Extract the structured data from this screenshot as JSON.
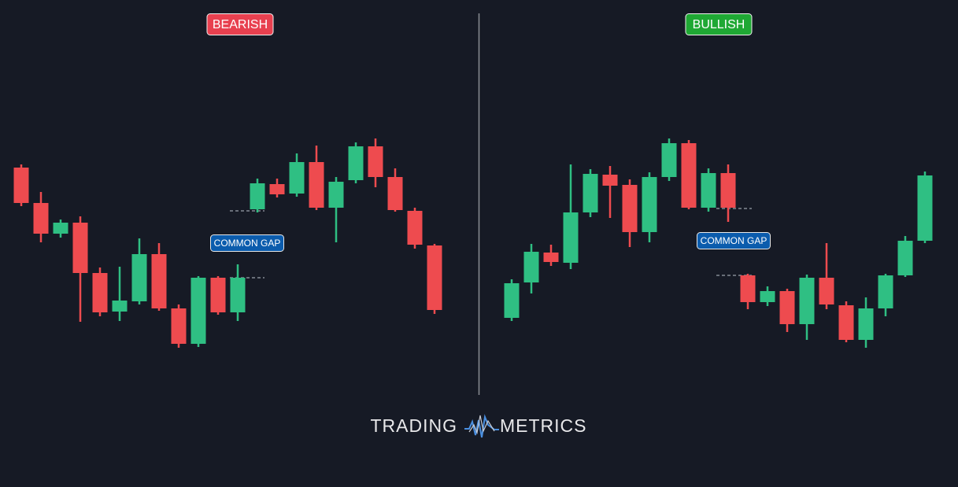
{
  "chart_data": [
    {
      "type": "candlestick",
      "title": "BEARISH",
      "title_color": "#e8404f",
      "annotation": "COMMON GAP",
      "up_color": "#2fbf83",
      "down_color": "#ee4b4f",
      "ylim": [
        0,
        500
      ],
      "gap": [
        232,
        147
      ],
      "open": [
        287,
        242,
        203,
        217,
        153,
        104,
        117,
        177,
        108,
        63,
        147,
        103,
        234,
        266,
        254,
        294,
        236,
        271,
        314,
        275,
        232,
        188
      ],
      "high": [
        291,
        256,
        221,
        225,
        160,
        161,
        197,
        191,
        113,
        149,
        149,
        164,
        273,
        273,
        305,
        315,
        275,
        319,
        324,
        286,
        236,
        190
      ],
      "low": [
        238,
        192,
        198,
        91,
        98,
        92,
        113,
        105,
        58,
        59,
        100,
        92,
        230,
        249,
        250,
        233,
        192,
        267,
        262,
        231,
        184,
        101
      ],
      "close": [
        242,
        203,
        217,
        153,
        103,
        118,
        177,
        108,
        63,
        147,
        103,
        147,
        267,
        253,
        294,
        236,
        269,
        314,
        275,
        233,
        189,
        106
      ]
    },
    {
      "type": "candlestick",
      "title": "BULLISH",
      "title_color": "#1fa834",
      "annotation": "COMMON GAP",
      "up_color": "#2fbf83",
      "down_color": "#ee4b4f",
      "ylim": [
        0,
        500
      ],
      "gap": [
        235,
        150
      ],
      "open": [
        96,
        141,
        179,
        166,
        230,
        278,
        265,
        205,
        275,
        318,
        236,
        280,
        150,
        116,
        130,
        88,
        147,
        112,
        68,
        108,
        150,
        194
      ],
      "high": [
        145,
        190,
        189,
        291,
        285,
        289,
        272,
        281,
        324,
        322,
        286,
        291,
        152,
        136,
        133,
        151,
        191,
        117,
        122,
        152,
        200,
        282
      ],
      "low": [
        92,
        127,
        162,
        158,
        224,
        223,
        186,
        192,
        270,
        234,
        231,
        218,
        107,
        111,
        78,
        68,
        107,
        65,
        58,
        98,
        148,
        191
      ],
      "close": [
        140,
        180,
        167,
        230,
        279,
        264,
        205,
        275,
        318,
        236,
        280,
        236,
        116,
        130,
        88,
        147,
        113,
        68,
        108,
        150,
        194,
        277
      ]
    }
  ],
  "footer": {
    "brand_left": "TRADING",
    "brand_right": "METRICS"
  }
}
